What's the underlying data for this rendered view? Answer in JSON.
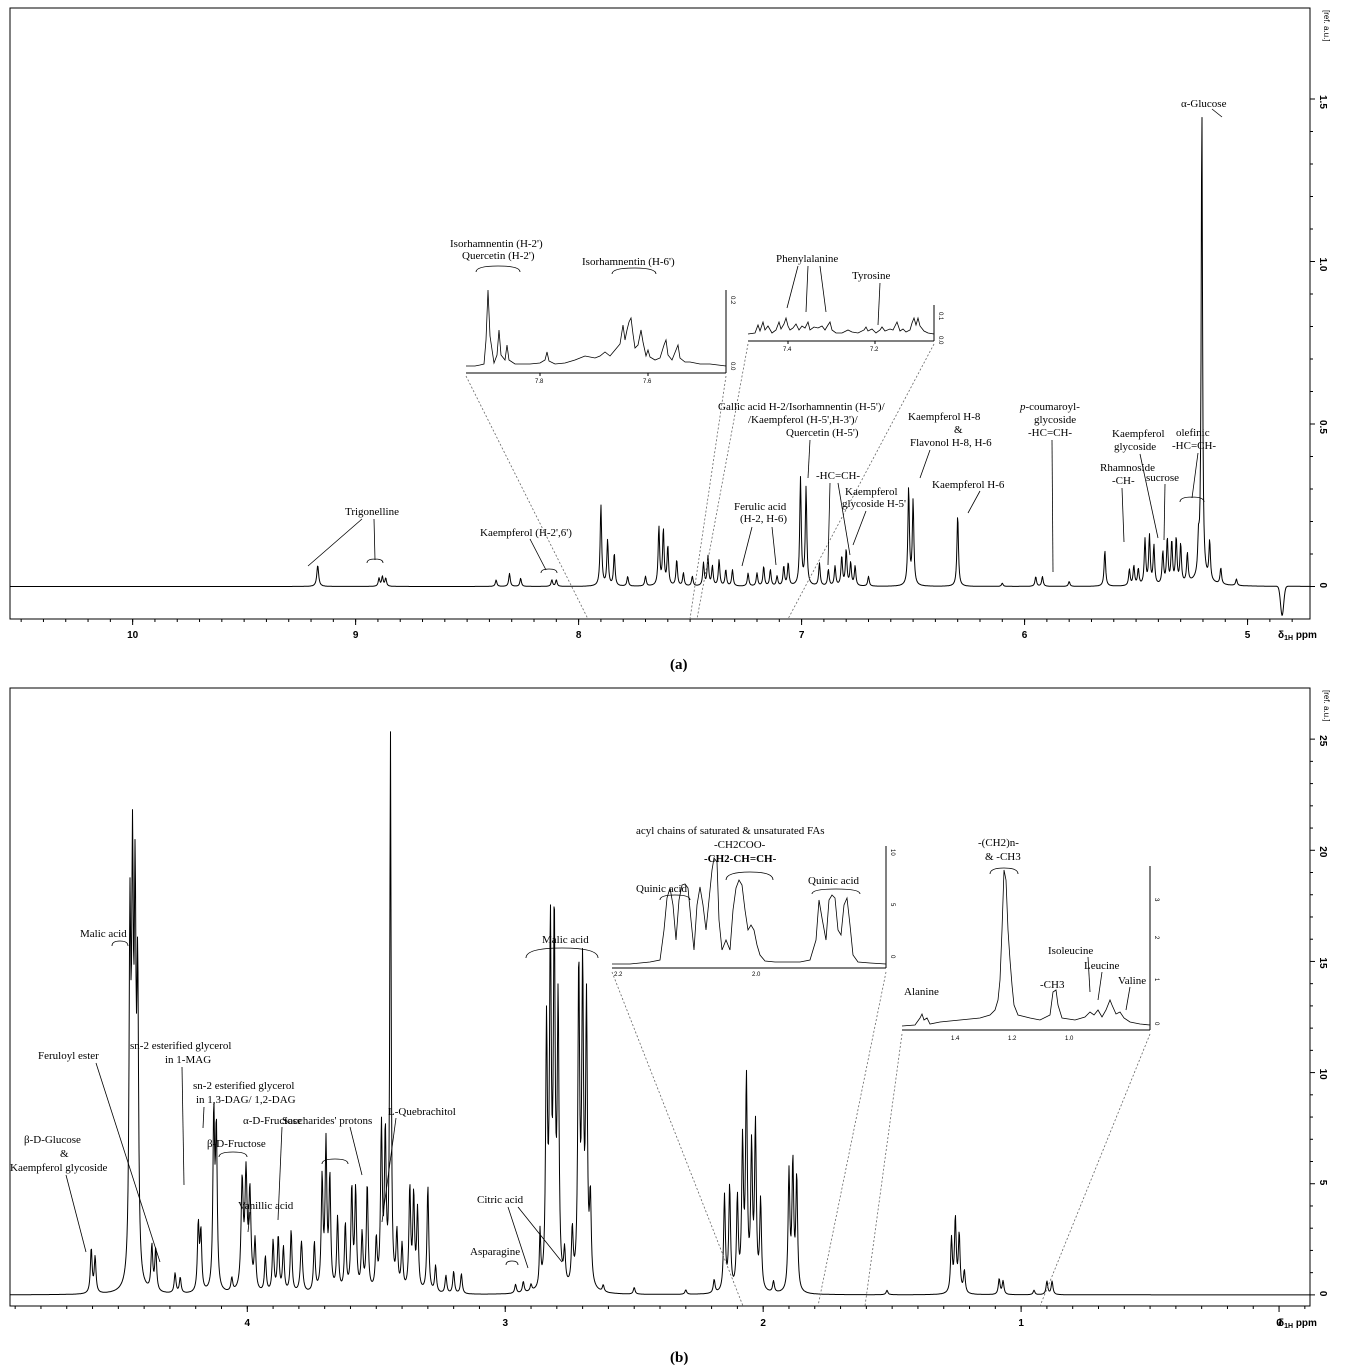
{
  "chart_data": [
    {
      "type": "line",
      "panel": "(a)",
      "xunit": "ppm",
      "yunit": "[ref. a.u.]",
      "xlim": [
        10.55,
        4.72
      ],
      "ylim": [
        -0.1,
        1.78
      ],
      "x_ticks": [
        10,
        9,
        8,
        7,
        6,
        5
      ],
      "y_ticks": [
        0,
        0.5,
        1.0,
        1.5
      ],
      "y_tick_labels": [
        "0",
        "0.5",
        "1.0",
        "1.5"
      ],
      "peaks": [
        {
          "x": 9.17,
          "h": 0.065,
          "w": 0.005
        },
        {
          "x": 8.895,
          "h": 0.025,
          "w": 0.004
        },
        {
          "x": 8.88,
          "h": 0.03,
          "w": 0.004
        },
        {
          "x": 8.865,
          "h": 0.025,
          "w": 0.004
        },
        {
          "x": 8.37,
          "h": 0.02,
          "w": 0.004
        },
        {
          "x": 8.31,
          "h": 0.04,
          "w": 0.004
        },
        {
          "x": 8.26,
          "h": 0.025,
          "w": 0.004
        },
        {
          "x": 8.12,
          "h": 0.02,
          "w": 0.004
        },
        {
          "x": 8.1,
          "h": 0.02,
          "w": 0.004
        },
        {
          "x": 7.9,
          "h": 0.25,
          "w": 0.004
        },
        {
          "x": 7.87,
          "h": 0.14,
          "w": 0.004
        },
        {
          "x": 7.84,
          "h": 0.1,
          "w": 0.004
        },
        {
          "x": 7.78,
          "h": 0.03,
          "w": 0.004
        },
        {
          "x": 7.7,
          "h": 0.03,
          "w": 0.004
        },
        {
          "x": 7.64,
          "h": 0.18,
          "w": 0.004
        },
        {
          "x": 7.62,
          "h": 0.17,
          "w": 0.004
        },
        {
          "x": 7.6,
          "h": 0.12,
          "w": 0.004
        },
        {
          "x": 7.56,
          "h": 0.08,
          "w": 0.004
        },
        {
          "x": 7.53,
          "h": 0.04,
          "w": 0.004
        },
        {
          "x": 7.49,
          "h": 0.03,
          "w": 0.004
        },
        {
          "x": 7.44,
          "h": 0.07,
          "w": 0.004
        },
        {
          "x": 7.42,
          "h": 0.09,
          "w": 0.004
        },
        {
          "x": 7.4,
          "h": 0.06,
          "w": 0.004
        },
        {
          "x": 7.37,
          "h": 0.08,
          "w": 0.004
        },
        {
          "x": 7.34,
          "h": 0.05,
          "w": 0.004
        },
        {
          "x": 7.31,
          "h": 0.05,
          "w": 0.004
        },
        {
          "x": 7.24,
          "h": 0.04,
          "w": 0.004
        },
        {
          "x": 7.2,
          "h": 0.04,
          "w": 0.004
        },
        {
          "x": 7.17,
          "h": 0.06,
          "w": 0.004
        },
        {
          "x": 7.14,
          "h": 0.05,
          "w": 0.004
        },
        {
          "x": 7.11,
          "h": 0.03,
          "w": 0.004
        },
        {
          "x": 7.08,
          "h": 0.06,
          "w": 0.004
        },
        {
          "x": 7.06,
          "h": 0.07,
          "w": 0.004
        },
        {
          "x": 7.005,
          "h": 0.33,
          "w": 0.004
        },
        {
          "x": 6.98,
          "h": 0.3,
          "w": 0.004
        },
        {
          "x": 6.92,
          "h": 0.07,
          "w": 0.004
        },
        {
          "x": 6.88,
          "h": 0.05,
          "w": 0.004
        },
        {
          "x": 6.85,
          "h": 0.06,
          "w": 0.004
        },
        {
          "x": 6.82,
          "h": 0.09,
          "w": 0.004
        },
        {
          "x": 6.8,
          "h": 0.11,
          "w": 0.004
        },
        {
          "x": 6.78,
          "h": 0.07,
          "w": 0.004
        },
        {
          "x": 6.76,
          "h": 0.06,
          "w": 0.004
        },
        {
          "x": 6.7,
          "h": 0.03,
          "w": 0.004
        },
        {
          "x": 6.52,
          "h": 0.3,
          "w": 0.004
        },
        {
          "x": 6.5,
          "h": 0.26,
          "w": 0.004
        },
        {
          "x": 6.3,
          "h": 0.22,
          "w": 0.004
        },
        {
          "x": 6.1,
          "h": 0.01,
          "w": 0.004
        },
        {
          "x": 5.95,
          "h": 0.03,
          "w": 0.004
        },
        {
          "x": 5.92,
          "h": 0.03,
          "w": 0.004
        },
        {
          "x": 5.8,
          "h": 0.015,
          "w": 0.004
        },
        {
          "x": 5.64,
          "h": 0.11,
          "w": 0.004
        },
        {
          "x": 5.53,
          "h": 0.05,
          "w": 0.004
        },
        {
          "x": 5.51,
          "h": 0.06,
          "w": 0.004
        },
        {
          "x": 5.49,
          "h": 0.05,
          "w": 0.004
        },
        {
          "x": 5.46,
          "h": 0.14,
          "w": 0.004
        },
        {
          "x": 5.44,
          "h": 0.15,
          "w": 0.004
        },
        {
          "x": 5.42,
          "h": 0.12,
          "w": 0.004
        },
        {
          "x": 5.38,
          "h": 0.1,
          "w": 0.004
        },
        {
          "x": 5.36,
          "h": 0.14,
          "w": 0.004
        },
        {
          "x": 5.34,
          "h": 0.13,
          "w": 0.004
        },
        {
          "x": 5.32,
          "h": 0.14,
          "w": 0.004
        },
        {
          "x": 5.3,
          "h": 0.12,
          "w": 0.004
        },
        {
          "x": 5.27,
          "h": 0.09,
          "w": 0.004
        },
        {
          "x": 5.22,
          "h": 0.1,
          "w": 0.004
        },
        {
          "x": 5.205,
          "h": 1.47,
          "w": 0.0035
        },
        {
          "x": 5.17,
          "h": 0.12,
          "w": 0.004
        },
        {
          "x": 5.12,
          "h": 0.05,
          "w": 0.004
        },
        {
          "x": 5.05,
          "h": 0.02,
          "w": 0.004
        }
      ],
      "insets": [
        {
          "ticks": [
            "7.8",
            "7.6"
          ],
          "yticks": [
            "0.2",
            "0.0"
          ]
        },
        {
          "ticks": [
            "7.4",
            "7.2"
          ],
          "yticks": [
            "0.1",
            "0.0"
          ]
        }
      ]
    },
    {
      "type": "line",
      "panel": "(b)",
      "xunit": "ppm",
      "yunit": "[ref. a.u.]",
      "xlim": [
        4.92,
        -0.12
      ],
      "ylim": [
        -0.5,
        27.3
      ],
      "x_ticks": [
        4,
        3,
        2,
        1,
        0
      ],
      "y_ticks": [
        0,
        5,
        10,
        15,
        20,
        25
      ],
      "y_tick_labels": [
        "0",
        "5",
        "10",
        "15",
        "20",
        "25"
      ],
      "peaks": [
        {
          "x": 4.605,
          "h": 2.0,
          "w": 0.004
        },
        {
          "x": 4.59,
          "h": 1.6,
          "w": 0.004
        },
        {
          "x": 4.455,
          "h": 15.5,
          "w": 0.004
        },
        {
          "x": 4.445,
          "h": 17.0,
          "w": 0.004
        },
        {
          "x": 4.435,
          "h": 15.8,
          "w": 0.004
        },
        {
          "x": 4.425,
          "h": 13.0,
          "w": 0.004
        },
        {
          "x": 4.37,
          "h": 2.0,
          "w": 0.004
        },
        {
          "x": 4.355,
          "h": 1.9,
          "w": 0.004
        },
        {
          "x": 4.28,
          "h": 0.9,
          "w": 0.004
        },
        {
          "x": 4.26,
          "h": 0.7,
          "w": 0.004
        },
        {
          "x": 4.19,
          "h": 3.0,
          "w": 0.004
        },
        {
          "x": 4.18,
          "h": 2.6,
          "w": 0.004
        },
        {
          "x": 4.13,
          "h": 7.8,
          "w": 0.004
        },
        {
          "x": 4.12,
          "h": 7.0,
          "w": 0.004
        },
        {
          "x": 4.06,
          "h": 0.6,
          "w": 0.004
        },
        {
          "x": 4.02,
          "h": 4.8,
          "w": 0.005
        },
        {
          "x": 4.005,
          "h": 5.0,
          "w": 0.005
        },
        {
          "x": 3.99,
          "h": 4.3,
          "w": 0.005
        },
        {
          "x": 3.97,
          "h": 2.2,
          "w": 0.004
        },
        {
          "x": 3.93,
          "h": 1.6,
          "w": 0.004
        },
        {
          "x": 3.9,
          "h": 2.3,
          "w": 0.004
        },
        {
          "x": 3.88,
          "h": 2.5,
          "w": 0.004
        },
        {
          "x": 3.86,
          "h": 2.0,
          "w": 0.004
        },
        {
          "x": 3.83,
          "h": 2.8,
          "w": 0.004
        },
        {
          "x": 3.79,
          "h": 2.3,
          "w": 0.005
        },
        {
          "x": 3.74,
          "h": 2.2,
          "w": 0.004
        },
        {
          "x": 3.71,
          "h": 5.0,
          "w": 0.004
        },
        {
          "x": 3.695,
          "h": 6.5,
          "w": 0.004
        },
        {
          "x": 3.68,
          "h": 5.0,
          "w": 0.004
        },
        {
          "x": 3.65,
          "h": 3.3,
          "w": 0.004
        },
        {
          "x": 3.62,
          "h": 3.0,
          "w": 0.004
        },
        {
          "x": 3.595,
          "h": 4.6,
          "w": 0.004
        },
        {
          "x": 3.58,
          "h": 4.5,
          "w": 0.004
        },
        {
          "x": 3.555,
          "h": 2.5,
          "w": 0.004
        },
        {
          "x": 3.535,
          "h": 4.8,
          "w": 0.004
        },
        {
          "x": 3.5,
          "h": 2.2,
          "w": 0.004
        },
        {
          "x": 3.48,
          "h": 7.2,
          "w": 0.004
        },
        {
          "x": 3.465,
          "h": 6.8,
          "w": 0.004
        },
        {
          "x": 3.445,
          "h": 24.9,
          "w": 0.003
        },
        {
          "x": 3.42,
          "h": 2.5,
          "w": 0.004
        },
        {
          "x": 3.4,
          "h": 2.0,
          "w": 0.004
        },
        {
          "x": 3.37,
          "h": 4.6,
          "w": 0.004
        },
        {
          "x": 3.355,
          "h": 4.2,
          "w": 0.004
        },
        {
          "x": 3.34,
          "h": 3.6,
          "w": 0.004
        },
        {
          "x": 3.3,
          "h": 4.8,
          "w": 0.004
        },
        {
          "x": 3.27,
          "h": 1.2,
          "w": 0.004
        },
        {
          "x": 3.23,
          "h": 0.8,
          "w": 0.004
        },
        {
          "x": 3.2,
          "h": 1.0,
          "w": 0.004
        },
        {
          "x": 3.17,
          "h": 0.9,
          "w": 0.004
        },
        {
          "x": 2.96,
          "h": 0.4,
          "w": 0.004
        },
        {
          "x": 2.93,
          "h": 0.5,
          "w": 0.004
        },
        {
          "x": 2.9,
          "h": 0.3,
          "w": 0.004
        },
        {
          "x": 2.865,
          "h": 2.5,
          "w": 0.003
        },
        {
          "x": 2.84,
          "h": 11.5,
          "w": 0.004
        },
        {
          "x": 2.825,
          "h": 15.6,
          "w": 0.004
        },
        {
          "x": 2.81,
          "h": 16.1,
          "w": 0.004
        },
        {
          "x": 2.795,
          "h": 12.5,
          "w": 0.004
        },
        {
          "x": 2.77,
          "h": 1.5,
          "w": 0.004
        },
        {
          "x": 2.74,
          "h": 2.5,
          "w": 0.004
        },
        {
          "x": 2.715,
          "h": 14.3,
          "w": 0.004
        },
        {
          "x": 2.7,
          "h": 13.8,
          "w": 0.004
        },
        {
          "x": 2.685,
          "h": 12.5,
          "w": 0.004
        },
        {
          "x": 2.67,
          "h": 3.8,
          "w": 0.004
        },
        {
          "x": 2.62,
          "h": 0.3,
          "w": 0.004
        },
        {
          "x": 2.5,
          "h": 0.3,
          "w": 0.004
        },
        {
          "x": 2.3,
          "h": 0.2,
          "w": 0.004
        },
        {
          "x": 2.19,
          "h": 0.6,
          "w": 0.004
        },
        {
          "x": 2.15,
          "h": 4.3,
          "w": 0.004
        },
        {
          "x": 2.13,
          "h": 4.7,
          "w": 0.004
        },
        {
          "x": 2.1,
          "h": 4.1,
          "w": 0.004
        },
        {
          "x": 2.08,
          "h": 6.5,
          "w": 0.004
        },
        {
          "x": 2.065,
          "h": 9.3,
          "w": 0.004
        },
        {
          "x": 2.045,
          "h": 6.2,
          "w": 0.004
        },
        {
          "x": 2.03,
          "h": 7.3,
          "w": 0.004
        },
        {
          "x": 2.01,
          "h": 4.0,
          "w": 0.004
        },
        {
          "x": 1.96,
          "h": 0.5,
          "w": 0.004
        },
        {
          "x": 1.9,
          "h": 5.3,
          "w": 0.004
        },
        {
          "x": 1.885,
          "h": 5.7,
          "w": 0.004
        },
        {
          "x": 1.87,
          "h": 5.1,
          "w": 0.004
        },
        {
          "x": 1.52,
          "h": 0.2,
          "w": 0.004
        },
        {
          "x": 1.27,
          "h": 2.4,
          "w": 0.004
        },
        {
          "x": 1.255,
          "h": 3.3,
          "w": 0.004
        },
        {
          "x": 1.24,
          "h": 2.6,
          "w": 0.004
        },
        {
          "x": 1.22,
          "h": 1.0,
          "w": 0.004
        },
        {
          "x": 1.085,
          "h": 0.7,
          "w": 0.004
        },
        {
          "x": 1.07,
          "h": 0.6,
          "w": 0.004
        },
        {
          "x": 0.95,
          "h": 0.2,
          "w": 0.004
        },
        {
          "x": 0.9,
          "h": 0.6,
          "w": 0.004
        },
        {
          "x": 0.88,
          "h": 0.6,
          "w": 0.004
        }
      ],
      "insets": [
        {
          "ticks": [
            "2.2",
            "2.0"
          ],
          "yticks": [
            "10",
            "5",
            "0"
          ]
        },
        {
          "ticks": [
            "1.4",
            "1.2",
            "1.0"
          ],
          "yticks": [
            "3",
            "2",
            "1",
            "0"
          ]
        }
      ]
    }
  ],
  "annotations_a": {
    "trigonelline": "Trigonelline",
    "kaempferol_26": "Kaempferol (H-2',6')",
    "iso_h2_a": "Isorhamnentin (H-2')",
    "iso_h2_b": "Quercetin (H-2')",
    "iso_h6": "Isorhamnentin (H-6')",
    "phenylalanine": "Phenylalanine",
    "tyrosine": "Tyrosine",
    "gallic_1": "Gallic acid H-2/Isorhamnentin (H-5')/",
    "gallic_2": "/Kaempferol (H-5',H-3')/",
    "gallic_3": "Quercetin (H-5')",
    "ferulic_1": "Ferulic acid",
    "ferulic_2": "(H-2, H-6)",
    "hccha": "-HC=CH-",
    "kglyc5_1": "Kaempferol",
    "kglyc5_2": "glycoside H-5'",
    "kh8_1": "Kaempferol H-8",
    "kh8_2": "&",
    "kh8_3": "Flavonol H-8, H-6",
    "kh6": "Kaempferol H-6",
    "pcou_1": "p-coumaroyl-",
    "pcou_2": "glycoside",
    "pcou_3": "-HC=CH-",
    "rham_1": "Rhamnoside",
    "rham_2": "-CH-",
    "kgly_1": "Kaempferol",
    "kgly_2": "glycoside",
    "sucrose": "sucrose",
    "olef_1": "olefinic",
    "olef_2": "-HC=CH-",
    "aglucose": "α-Glucose"
  },
  "annotations_b": {
    "bglc_1": "β-D-Glucose",
    "bglc_2": "&",
    "bglc_3": "Kaempferol glycoside",
    "feruloyl": "Feruloyl ester",
    "malic1": "Malic acid",
    "sn2mag_1": "sn-2 esterified glycerol",
    "sn2mag_2": "in 1-MAG",
    "sn2dag_1": "sn-2 esterified glycerol",
    "sn2dag_2": "in 1,3-DAG/ 1,2-DAG",
    "bfru": "β-D-Fructose",
    "vanillic": "Vanillic acid",
    "afru": "α-D-Fructose",
    "sacch": "Saccharides' protons",
    "quebrachitol": "L-Quebrachitol",
    "citric": "Citric acid",
    "asparagine": "Asparagine",
    "malic2": "Malic acid",
    "acyl": "acyl chains of saturated & unsaturated FAs",
    "ch2coo": "-CH2COO-",
    "ch2chch": "-CH2-CH=CH-",
    "quinic1": "Quinic acid",
    "quinic2": "Quinic acid",
    "ch2n_1": "-(CH2)n-",
    "ch2n_2": "& -CH3",
    "ch3": "-CH3",
    "isoleucine": "Isoleucine",
    "leucine": "Leucine",
    "valine": "Valine",
    "alanine": "Alanine"
  }
}
